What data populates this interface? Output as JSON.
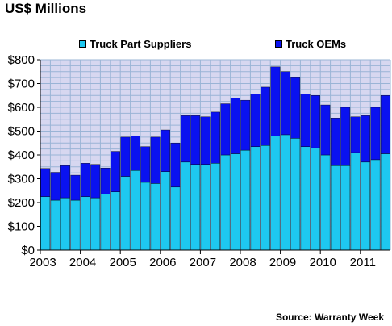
{
  "title": "US$ Millions",
  "source": "Source: Warranty Week",
  "colors": {
    "suppliers": "#1EC8F0",
    "oems": "#0A12F0",
    "plot_bg": "#D7D7F0",
    "grid": "#9AB4D6"
  },
  "chart_data": {
    "type": "bar",
    "stacked": true,
    "ylim": [
      0,
      800
    ],
    "y_ticks": [
      "$0",
      "$100",
      "$200",
      "$300",
      "$400",
      "$500",
      "$600",
      "$700",
      "$800"
    ],
    "x_tick_labels": [
      "2003",
      "2004",
      "2005",
      "2006",
      "2007",
      "2008",
      "2009",
      "2010",
      "2011"
    ],
    "grid": true,
    "legend_position": "top",
    "series": [
      {
        "name": "Truck Part Suppliers",
        "color": "#1EC8F0",
        "values": [
          225,
          210,
          220,
          210,
          225,
          220,
          235,
          245,
          310,
          335,
          285,
          280,
          330,
          265,
          370,
          360,
          360,
          365,
          400,
          405,
          420,
          435,
          440,
          480,
          485,
          470,
          435,
          430,
          400,
          355,
          355,
          410,
          370,
          380,
          405
        ]
      },
      {
        "name": "Truck OEMs",
        "color": "#0A12F0",
        "values": [
          118,
          117,
          135,
          105,
          140,
          140,
          110,
          170,
          165,
          145,
          150,
          195,
          175,
          185,
          195,
          205,
          200,
          215,
          215,
          235,
          210,
          220,
          245,
          290,
          265,
          255,
          220,
          220,
          210,
          200,
          245,
          150,
          195,
          220,
          245
        ]
      }
    ]
  }
}
